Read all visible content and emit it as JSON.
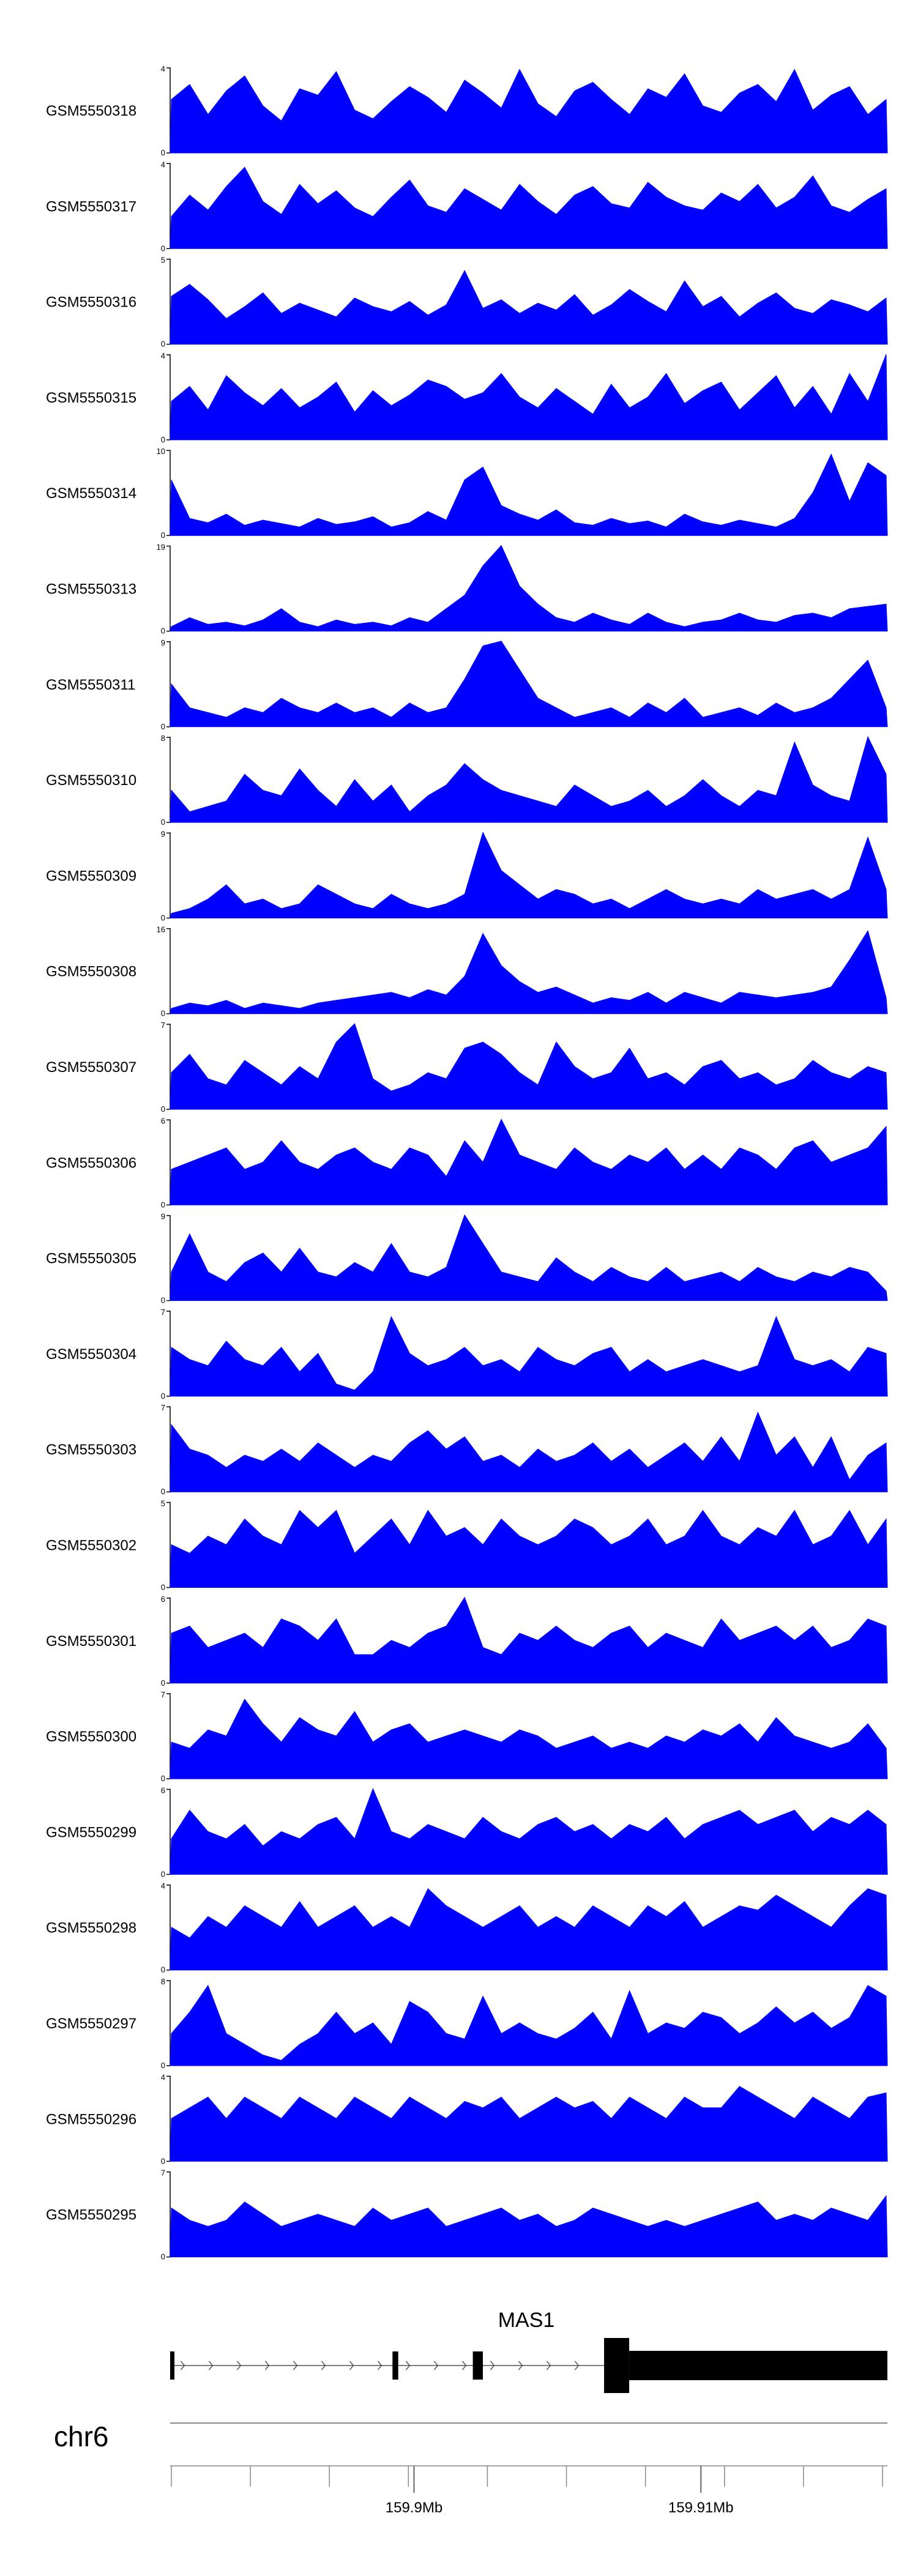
{
  "chart_data": {
    "type": "area",
    "color": "#0000ff",
    "tracks": [
      {
        "name": "GSM5550318",
        "ymax": "4",
        "ymin": "0",
        "values": [
          2.5,
          3.2,
          1.8,
          2.9,
          3.6,
          2.2,
          1.5,
          3.0,
          2.7,
          3.8,
          2.0,
          1.6,
          2.4,
          3.1,
          2.6,
          1.9,
          3.4,
          2.8,
          2.1,
          3.9,
          2.3,
          1.7,
          2.9,
          3.3,
          2.5,
          1.8,
          3.0,
          2.6,
          3.7,
          2.2,
          1.9,
          2.8,
          3.2,
          2.4,
          3.9,
          2.0,
          2.7,
          3.1,
          1.8,
          2.5
        ]
      },
      {
        "name": "GSM5550317",
        "ymax": "4",
        "ymin": "0",
        "values": [
          1.5,
          2.5,
          1.8,
          2.9,
          3.8,
          2.2,
          1.6,
          3.0,
          2.1,
          2.7,
          1.9,
          1.5,
          2.4,
          3.2,
          2.0,
          1.7,
          2.8,
          2.3,
          1.8,
          3.0,
          2.2,
          1.6,
          2.5,
          2.9,
          2.1,
          1.9,
          3.1,
          2.4,
          2.0,
          1.8,
          2.6,
          2.2,
          3.0,
          1.9,
          2.4,
          3.4,
          2.0,
          1.7,
          2.3,
          2.8
        ]
      },
      {
        "name": "GSM5550316",
        "ymax": "5",
        "ymin": "0",
        "values": [
          2.8,
          3.5,
          2.6,
          1.5,
          2.2,
          3.0,
          1.8,
          2.4,
          2.0,
          1.6,
          2.7,
          2.2,
          1.9,
          2.5,
          1.7,
          2.3,
          4.3,
          2.1,
          2.6,
          1.8,
          2.4,
          2.0,
          2.9,
          1.7,
          2.3,
          3.2,
          2.5,
          1.9,
          3.7,
          2.2,
          2.8,
          1.6,
          2.4,
          3.0,
          2.1,
          1.8,
          2.6,
          2.3,
          1.9,
          2.7
        ]
      },
      {
        "name": "GSM5550315",
        "ymax": "4",
        "ymin": "0",
        "values": [
          1.8,
          2.5,
          1.4,
          3.0,
          2.2,
          1.6,
          2.4,
          1.5,
          2.0,
          2.7,
          1.3,
          2.3,
          1.6,
          2.1,
          2.8,
          2.5,
          1.9,
          2.2,
          3.1,
          2.0,
          1.5,
          2.4,
          1.8,
          1.2,
          2.6,
          1.5,
          2.0,
          3.1,
          1.7,
          2.3,
          2.7,
          1.4,
          2.2,
          3.0,
          1.5,
          2.5,
          1.2,
          3.1,
          1.8,
          4.0
        ]
      },
      {
        "name": "GSM5550314",
        "ymax": "10",
        "ymin": "0",
        "values": [
          6.5,
          2.0,
          1.5,
          2.5,
          1.2,
          1.8,
          1.4,
          1.0,
          2.0,
          1.3,
          1.6,
          2.2,
          1.0,
          1.5,
          2.8,
          1.8,
          6.5,
          8.0,
          3.5,
          2.5,
          1.8,
          3.0,
          1.5,
          1.2,
          2.0,
          1.4,
          1.7,
          1.0,
          2.5,
          1.6,
          1.2,
          1.8,
          1.4,
          1.0,
          2.0,
          5.0,
          9.5,
          4.0,
          8.5,
          7.0
        ]
      },
      {
        "name": "GSM5550313",
        "ymax": "19",
        "ymin": "0",
        "values": [
          1.0,
          3.0,
          1.5,
          2.0,
          1.2,
          2.5,
          5.0,
          2.0,
          1.0,
          2.5,
          1.5,
          2.0,
          1.2,
          3.0,
          2.0,
          5.0,
          8.0,
          14.5,
          19.0,
          10.0,
          6.0,
          3.0,
          2.0,
          4.0,
          2.5,
          1.5,
          4.0,
          2.0,
          1.0,
          2.0,
          2.5,
          4.0,
          2.5,
          2.0,
          3.5,
          4.0,
          3.0,
          5.0,
          5.5,
          6.0
        ]
      },
      {
        "name": "GSM5550311",
        "ymax": "9",
        "ymin": "0",
        "values": [
          4.5,
          2.0,
          1.5,
          1.0,
          2.0,
          1.5,
          3.0,
          2.0,
          1.5,
          2.5,
          1.5,
          2.0,
          1.0,
          2.5,
          1.5,
          2.0,
          5.0,
          8.5,
          9.0,
          6.0,
          3.0,
          2.0,
          1.0,
          1.5,
          2.0,
          1.0,
          2.5,
          1.5,
          3.0,
          1.0,
          1.5,
          2.0,
          1.2,
          2.5,
          1.5,
          2.0,
          3.0,
          5.0,
          7.0,
          2.0
        ]
      },
      {
        "name": "GSM5550310",
        "ymax": "8",
        "ymin": "0",
        "values": [
          3.0,
          1.0,
          1.5,
          2.0,
          4.5,
          3.0,
          2.5,
          5.0,
          3.0,
          1.5,
          4.0,
          2.0,
          3.5,
          1.0,
          2.5,
          3.5,
          5.5,
          4.0,
          3.0,
          2.5,
          2.0,
          1.5,
          3.5,
          2.5,
          1.5,
          2.0,
          3.0,
          1.5,
          2.5,
          4.0,
          2.5,
          1.5,
          3.0,
          2.5,
          7.5,
          3.5,
          2.5,
          2.0,
          8.0,
          4.5
        ]
      },
      {
        "name": "GSM5550309",
        "ymax": "9",
        "ymin": "0",
        "values": [
          0.5,
          1.0,
          2.0,
          3.5,
          1.5,
          2.0,
          1.0,
          1.5,
          3.5,
          2.5,
          1.5,
          1.0,
          2.5,
          1.5,
          1.0,
          1.5,
          2.5,
          9.0,
          5.0,
          3.5,
          2.0,
          3.0,
          2.5,
          1.5,
          2.0,
          1.0,
          2.0,
          3.0,
          2.0,
          1.5,
          2.0,
          1.5,
          3.0,
          2.0,
          2.5,
          3.0,
          2.0,
          3.0,
          8.5,
          3.0
        ]
      },
      {
        "name": "GSM5550308",
        "ymax": "16",
        "ymin": "0",
        "values": [
          1.0,
          2.0,
          1.5,
          2.5,
          1.0,
          2.0,
          1.5,
          1.0,
          2.0,
          2.5,
          3.0,
          3.5,
          4.0,
          3.0,
          4.5,
          3.5,
          7.0,
          15.0,
          9.0,
          6.0,
          4.0,
          5.0,
          3.5,
          2.0,
          3.0,
          2.5,
          4.0,
          2.0,
          4.0,
          3.0,
          2.0,
          4.0,
          3.5,
          3.0,
          3.5,
          4.0,
          5.0,
          10.0,
          15.5,
          3.0
        ]
      },
      {
        "name": "GSM5550307",
        "ymax": "7",
        "ymin": "0",
        "values": [
          3.0,
          4.5,
          2.5,
          2.0,
          4.0,
          3.0,
          2.0,
          3.5,
          2.5,
          5.5,
          7.0,
          2.5,
          1.5,
          2.0,
          3.0,
          2.5,
          5.0,
          5.5,
          4.5,
          3.0,
          2.0,
          5.5,
          3.5,
          2.5,
          3.0,
          5.0,
          2.5,
          3.0,
          2.0,
          3.5,
          4.0,
          2.5,
          3.0,
          2.0,
          2.5,
          4.0,
          3.0,
          2.5,
          3.5,
          3.0
        ]
      },
      {
        "name": "GSM5550306",
        "ymax": "6",
        "ymin": "0",
        "values": [
          2.5,
          3.0,
          3.5,
          4.0,
          2.5,
          3.0,
          4.5,
          3.0,
          2.5,
          3.5,
          4.0,
          3.0,
          2.5,
          4.0,
          3.5,
          2.0,
          4.5,
          3.0,
          6.0,
          3.5,
          3.0,
          2.5,
          4.0,
          3.0,
          2.5,
          3.5,
          3.0,
          4.0,
          2.5,
          3.5,
          2.5,
          4.0,
          3.5,
          2.5,
          4.0,
          4.5,
          3.0,
          3.5,
          4.0,
          5.5
        ]
      },
      {
        "name": "GSM5550305",
        "ymax": "9",
        "ymin": "0",
        "values": [
          3.0,
          7.0,
          3.0,
          2.0,
          4.0,
          5.0,
          3.0,
          5.5,
          3.0,
          2.5,
          4.0,
          3.0,
          6.0,
          3.0,
          2.5,
          3.5,
          9.0,
          6.0,
          3.0,
          2.5,
          2.0,
          4.5,
          3.0,
          2.0,
          3.5,
          2.5,
          2.0,
          3.5,
          2.0,
          2.5,
          3.0,
          2.0,
          3.5,
          2.5,
          2.0,
          3.0,
          2.5,
          3.5,
          3.0,
          1.0
        ]
      },
      {
        "name": "GSM5550304",
        "ymax": "7",
        "ymin": "0",
        "values": [
          4.0,
          3.0,
          2.5,
          4.5,
          3.0,
          2.5,
          4.0,
          2.0,
          3.5,
          1.0,
          0.5,
          2.0,
          6.5,
          3.5,
          2.5,
          3.0,
          4.0,
          2.5,
          3.0,
          2.0,
          4.0,
          3.0,
          2.5,
          3.5,
          4.0,
          2.0,
          3.0,
          2.0,
          2.5,
          3.0,
          2.5,
          2.0,
          2.5,
          6.5,
          3.0,
          2.5,
          3.0,
          2.0,
          4.0,
          3.5
        ]
      },
      {
        "name": "GSM5550303",
        "ymax": "7",
        "ymin": "0",
        "values": [
          5.5,
          3.5,
          3.0,
          2.0,
          3.0,
          2.5,
          3.5,
          2.5,
          4.0,
          3.0,
          2.0,
          3.0,
          2.5,
          4.0,
          5.0,
          3.5,
          4.5,
          2.5,
          3.0,
          2.0,
          3.5,
          2.5,
          3.0,
          4.0,
          2.5,
          3.5,
          2.0,
          3.0,
          4.0,
          2.5,
          4.5,
          2.5,
          6.5,
          3.0,
          4.5,
          2.0,
          4.5,
          1.0,
          3.0,
          4.0
        ]
      },
      {
        "name": "GSM5550302",
        "ymax": "5",
        "ymin": "0",
        "values": [
          2.5,
          2.0,
          3.0,
          2.5,
          4.0,
          3.0,
          2.5,
          4.5,
          3.5,
          4.5,
          2.0,
          3.0,
          4.0,
          2.5,
          4.5,
          3.0,
          3.5,
          2.5,
          4.0,
          3.0,
          2.5,
          3.0,
          4.0,
          3.5,
          2.5,
          3.0,
          4.0,
          2.5,
          3.0,
          4.5,
          3.0,
          2.5,
          3.5,
          3.0,
          4.5,
          2.5,
          3.0,
          4.5,
          2.5,
          4.0
        ]
      },
      {
        "name": "GSM5550301",
        "ymax": "6",
        "ymin": "0",
        "values": [
          3.5,
          4.0,
          2.5,
          3.0,
          3.5,
          2.5,
          4.5,
          4.0,
          3.0,
          4.5,
          2.0,
          2.0,
          3.0,
          2.5,
          3.5,
          4.0,
          6.0,
          2.5,
          2.0,
          3.5,
          3.0,
          4.0,
          3.0,
          2.5,
          3.5,
          4.0,
          2.5,
          3.5,
          3.0,
          2.5,
          4.5,
          3.0,
          3.5,
          4.0,
          3.0,
          4.0,
          2.5,
          3.0,
          4.5,
          4.0
        ]
      },
      {
        "name": "GSM5550300",
        "ymax": "7",
        "ymin": "0",
        "values": [
          3.0,
          2.5,
          4.0,
          3.5,
          6.5,
          4.5,
          3.0,
          5.0,
          4.0,
          3.5,
          5.5,
          3.0,
          4.0,
          4.5,
          3.0,
          3.5,
          4.0,
          3.5,
          3.0,
          4.0,
          3.5,
          2.5,
          3.0,
          3.5,
          2.5,
          3.0,
          2.5,
          3.5,
          3.0,
          4.0,
          3.5,
          4.5,
          3.0,
          5.0,
          3.5,
          3.0,
          2.5,
          3.0,
          4.5,
          2.5
        ]
      },
      {
        "name": "GSM5550299",
        "ymax": "6",
        "ymin": "0",
        "values": [
          2.5,
          4.5,
          3.0,
          2.5,
          3.5,
          2.0,
          3.0,
          2.5,
          3.5,
          4.0,
          2.5,
          6.0,
          3.0,
          2.5,
          3.5,
          3.0,
          2.5,
          4.0,
          3.0,
          2.5,
          3.5,
          4.0,
          3.0,
          3.5,
          2.5,
          3.5,
          3.0,
          4.0,
          2.5,
          3.5,
          4.0,
          4.5,
          3.5,
          4.0,
          4.5,
          3.0,
          4.0,
          3.5,
          4.5,
          3.5
        ]
      },
      {
        "name": "GSM5550298",
        "ymax": "4",
        "ymin": "0",
        "values": [
          2.0,
          1.5,
          2.5,
          2.0,
          3.0,
          2.5,
          2.0,
          3.2,
          2.0,
          2.5,
          3.0,
          2.0,
          2.5,
          2.0,
          3.8,
          3.0,
          2.5,
          2.0,
          2.5,
          3.0,
          2.0,
          2.5,
          2.0,
          3.0,
          2.5,
          2.0,
          3.0,
          2.5,
          3.2,
          2.0,
          2.5,
          3.0,
          2.8,
          3.5,
          3.0,
          2.5,
          2.0,
          3.0,
          3.8,
          3.5
        ]
      },
      {
        "name": "GSM5550297",
        "ymax": "8",
        "ymin": "0",
        "values": [
          3.0,
          5.0,
          7.5,
          3.0,
          2.0,
          1.0,
          0.5,
          2.0,
          3.0,
          5.0,
          3.0,
          4.0,
          2.0,
          6.0,
          5.0,
          3.0,
          2.5,
          6.5,
          3.0,
          4.0,
          3.0,
          2.5,
          3.5,
          5.0,
          2.5,
          7.0,
          3.0,
          4.0,
          3.5,
          5.0,
          4.5,
          3.0,
          4.0,
          5.5,
          4.0,
          5.0,
          3.5,
          4.5,
          7.5,
          6.5
        ]
      },
      {
        "name": "GSM5550296",
        "ymax": "4",
        "ymin": "0",
        "values": [
          2.0,
          2.5,
          3.0,
          2.0,
          3.0,
          2.5,
          2.0,
          3.0,
          2.5,
          2.0,
          3.0,
          2.5,
          2.0,
          3.0,
          2.5,
          2.0,
          2.8,
          2.5,
          3.0,
          2.0,
          2.5,
          3.0,
          2.5,
          2.8,
          2.0,
          3.0,
          2.5,
          2.0,
          3.0,
          2.5,
          2.5,
          3.5,
          3.0,
          2.5,
          2.0,
          3.0,
          2.5,
          2.0,
          3.0,
          3.2
        ]
      },
      {
        "name": "GSM5550295",
        "ymax": "7",
        "ymin": "0",
        "values": [
          4.0,
          3.0,
          2.5,
          3.0,
          4.5,
          3.5,
          2.5,
          3.0,
          3.5,
          3.0,
          2.5,
          4.0,
          3.0,
          3.5,
          4.0,
          2.5,
          3.0,
          3.5,
          4.0,
          3.0,
          3.5,
          2.5,
          3.0,
          4.0,
          3.5,
          3.0,
          2.5,
          3.0,
          2.5,
          3.0,
          3.5,
          4.0,
          4.5,
          3.0,
          3.5,
          3.0,
          4.0,
          3.5,
          3.0,
          5.0
        ]
      }
    ],
    "gene": {
      "name": "MAS1",
      "thin_exons": [
        [
          0.0,
          0.006
        ],
        [
          0.31,
          0.318
        ],
        [
          0.422,
          0.436
        ],
        [
          0.605,
          0.64
        ]
      ],
      "thick_exon": [
        0.64,
        1.0
      ],
      "intron": [
        0.006,
        0.605
      ]
    },
    "chromosome": "chr6",
    "x_axis": {
      "range_mb": [
        159.8915,
        159.9165
      ],
      "tick_labels": [
        {
          "label": "159.9Mb",
          "mb": 159.9
        },
        {
          "label": "159.91Mb",
          "mb": 159.91
        }
      ],
      "minor_tick_count": 10
    }
  }
}
